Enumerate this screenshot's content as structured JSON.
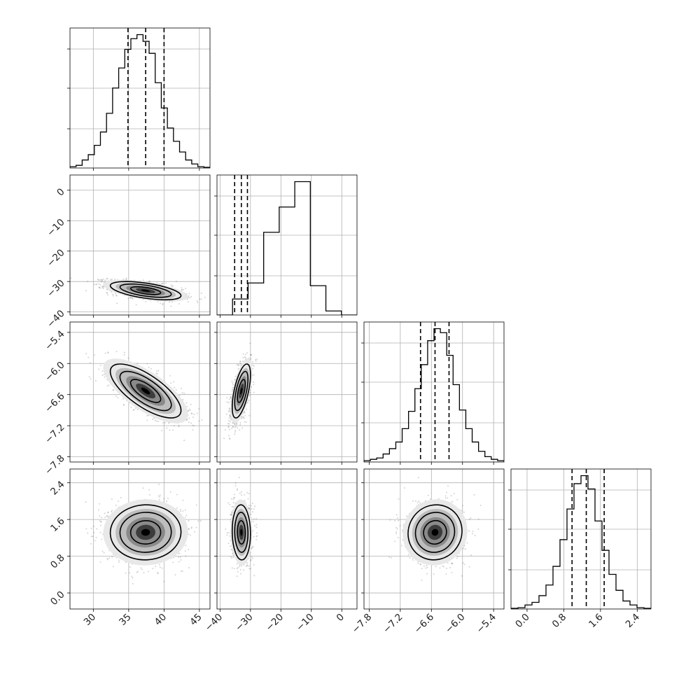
{
  "chart_data": {
    "type": "corner",
    "n_params": 4,
    "title": "",
    "param_labels": [
      "",
      "",
      "",
      ""
    ],
    "ranges": [
      [
        26.7,
        46.5
      ],
      [
        -41,
        5
      ],
      [
        -7.9,
        -5.2
      ],
      [
        -0.35,
        2.7
      ]
    ],
    "x_ticks": [
      [
        "30",
        "35",
        "40",
        "45"
      ],
      [
        "−40",
        "−30",
        "−20",
        "−10",
        "0"
      ],
      [
        "−7.8",
        "−7.2",
        "−6.6",
        "−6.0",
        "−5.4"
      ],
      [
        "0.0",
        "0.8",
        "1.6",
        "2.4"
      ]
    ],
    "y_ticks": [
      null,
      [
        "0",
        "−10",
        "−20",
        "−30",
        "−40"
      ],
      [
        "−5.4",
        "−6.0",
        "−6.6",
        "−7.2",
        "−7.8"
      ],
      [
        "2.4",
        "1.6",
        "0.8",
        "0.0"
      ]
    ],
    "quantiles": [
      [
        34.9,
        37.4,
        40.0
      ],
      [
        -35.2,
        -33.0,
        -31.0
      ],
      [
        -6.81,
        -6.53,
        -6.26
      ],
      [
        0.98,
        1.29,
        1.68
      ]
    ],
    "means": [
      37.4,
      -33.0,
      -6.53,
      1.32
    ],
    "stds": [
      2.5,
      1.5,
      0.26,
      0.3
    ],
    "correlations": {
      "1-0": -0.55,
      "2-0": -0.72,
      "3-0": 0.02,
      "2-1": 0.6,
      "3-1": -0.05,
      "3-2": 0.05
    },
    "histograms": [
      [
        0.01,
        0.02,
        0.06,
        0.1,
        0.17,
        0.27,
        0.41,
        0.6,
        0.75,
        0.89,
        0.97,
        1.0,
        0.95,
        0.86,
        0.64,
        0.45,
        0.3,
        0.2,
        0.12,
        0.06,
        0.03,
        0.01,
        0.005
      ],
      [
        0.0,
        0.12,
        0.24,
        0.62,
        0.81,
        1.0,
        0.22,
        0.03,
        0.0
      ],
      [
        0.01,
        0.02,
        0.03,
        0.06,
        0.1,
        0.15,
        0.25,
        0.38,
        0.55,
        0.73,
        0.91,
        1.0,
        0.97,
        0.8,
        0.58,
        0.39,
        0.25,
        0.15,
        0.08,
        0.04,
        0.02,
        0.01
      ],
      [
        0.005,
        0.01,
        0.03,
        0.05,
        0.1,
        0.18,
        0.32,
        0.52,
        0.75,
        0.94,
        1.0,
        0.9,
        0.66,
        0.44,
        0.26,
        0.14,
        0.06,
        0.03,
        0.01,
        0.005
      ]
    ],
    "grid": true,
    "contour_levels": 3
  }
}
